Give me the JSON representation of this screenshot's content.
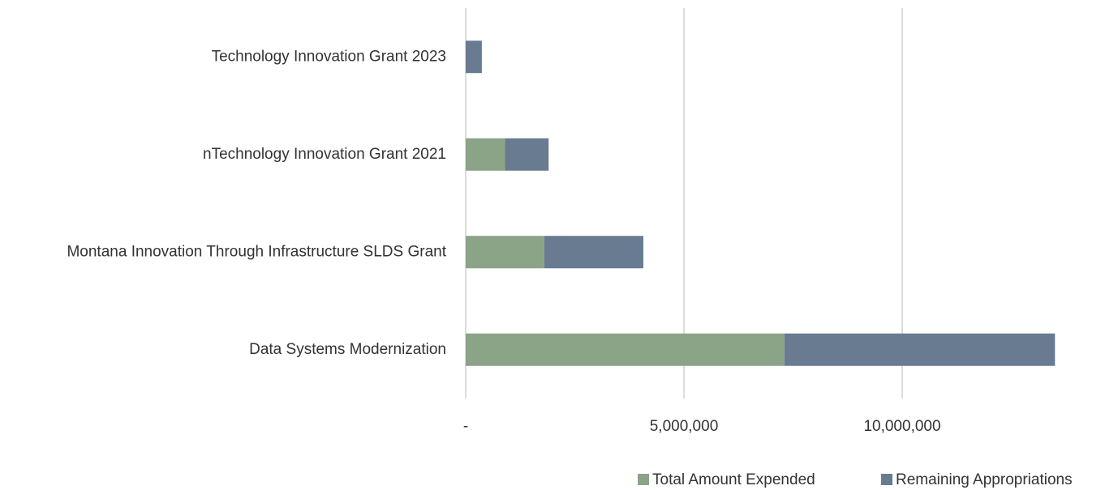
{
  "chart_data": {
    "type": "stacked_bar_horizontal",
    "categories": [
      "Data Systems Modernization",
      "Montana Innovation Through Infrastructure SLDS Grant",
      "nTechnology Innovation Grant 2021",
      "Technology Innovation Grant 2023"
    ],
    "series": [
      {
        "name": "Total Amount Expended",
        "color": "#8ba386",
        "values": [
          7300000,
          1800000,
          900000,
          0
        ]
      },
      {
        "name": "Remaining Appropriations",
        "color": "#687b91",
        "values": [
          6200000,
          2270000,
          1000000,
          370000
        ]
      }
    ],
    "xlim": [
      0,
      15000000
    ],
    "xticks": [
      {
        "value": 0,
        "label": "-"
      },
      {
        "value": 5000000,
        "label": "5,000,000"
      },
      {
        "value": 10000000,
        "label": "10,000,000"
      }
    ],
    "grid": true,
    "legend": "bottom-right"
  }
}
